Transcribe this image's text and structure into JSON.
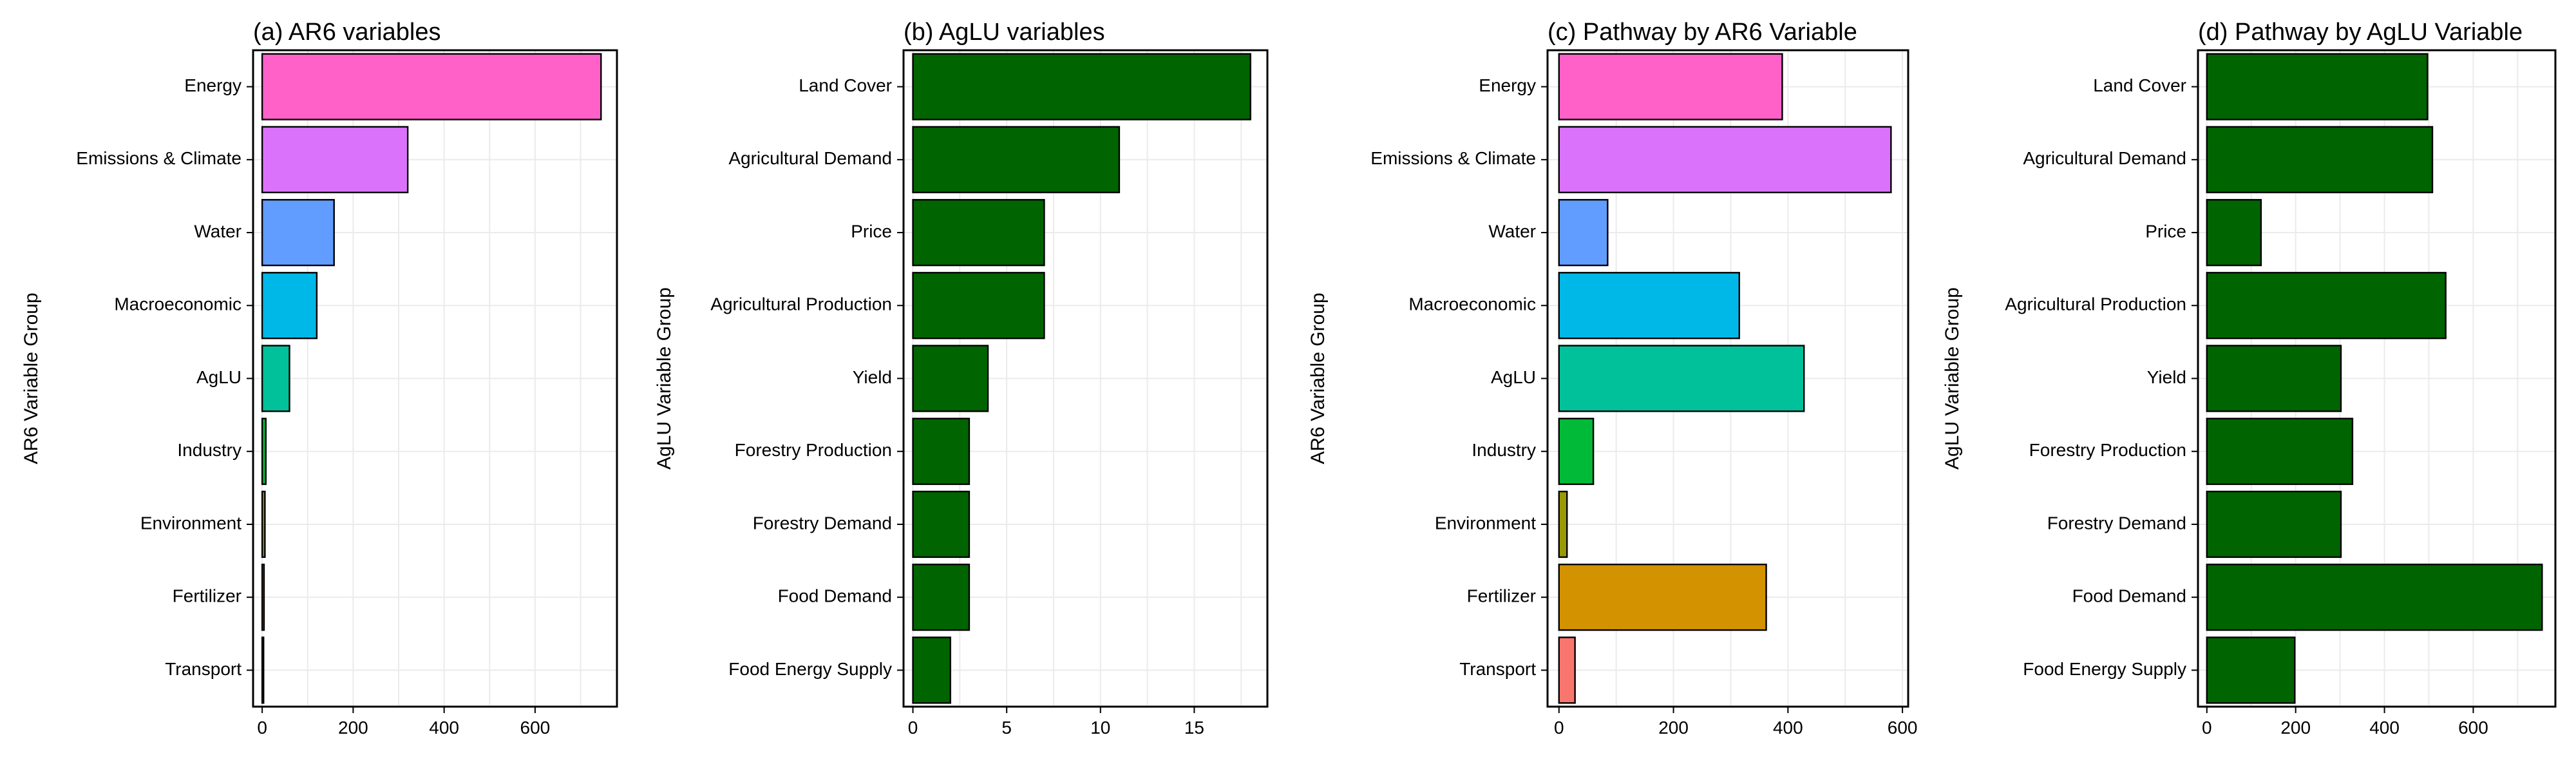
{
  "chart_data": [
    {
      "type": "bar",
      "orientation": "horizontal",
      "title": "(a) AR6 variables",
      "ylabel": "AR6 Variable Group",
      "xlabel": "",
      "categories": [
        "Energy",
        "Emissions & Climate",
        "Water",
        "Macroeconomic",
        "AgLU",
        "Industry",
        "Environment",
        "Fertilizer",
        "Transport"
      ],
      "values": [
        745,
        320,
        158,
        120,
        60,
        8,
        6,
        4,
        3
      ],
      "colors": [
        "#ff61c9",
        "#db72fb",
        "#619cff",
        "#00b8e7",
        "#00c19a",
        "#00ba38",
        "#999900",
        "#d39200",
        "#f8766d"
      ],
      "xlim": [
        -20,
        780
      ],
      "xticks": [
        0,
        200,
        400,
        600
      ],
      "grid": true
    },
    {
      "type": "bar",
      "orientation": "horizontal",
      "title": "(b) AgLU variables",
      "ylabel": "AgLU Variable Group",
      "xlabel": "",
      "categories": [
        "Land Cover",
        "Agricultural Demand",
        "Price",
        "Agricultural Production",
        "Yield",
        "Forestry Production",
        "Forestry Demand",
        "Food Demand",
        "Food Energy Supply"
      ],
      "values": [
        18,
        11,
        7,
        7,
        4,
        3,
        3,
        3,
        2
      ],
      "colors": [
        "#006400",
        "#006400",
        "#006400",
        "#006400",
        "#006400",
        "#006400",
        "#006400",
        "#006400",
        "#006400"
      ],
      "xlim": [
        -0.5,
        18.9
      ],
      "xticks": [
        0,
        5,
        10,
        15
      ],
      "grid": true
    },
    {
      "type": "bar",
      "orientation": "horizontal",
      "title": "(c) Pathway by AR6 Variable",
      "ylabel": "AR6 Variable Group",
      "xlabel": "",
      "categories": [
        "Energy",
        "Emissions & Climate",
        "Water",
        "Macroeconomic",
        "AgLU",
        "Industry",
        "Environment",
        "Fertilizer",
        "Transport"
      ],
      "values": [
        390,
        580,
        85,
        315,
        428,
        60,
        14,
        362,
        28
      ],
      "colors": [
        "#ff61c9",
        "#db72fb",
        "#619cff",
        "#00b8e7",
        "#00c19a",
        "#00ba38",
        "#999900",
        "#d39200",
        "#f8766d"
      ],
      "xlim": [
        -20,
        610
      ],
      "xticks": [
        0,
        200,
        400,
        600
      ],
      "grid": true
    },
    {
      "type": "bar",
      "orientation": "horizontal",
      "title": "(d) Pathway by AgLU Variable",
      "ylabel": "AgLU Variable Group",
      "xlabel": "",
      "categories": [
        "Land Cover",
        "Agricultural Demand",
        "Price",
        "Agricultural Production",
        "Yield",
        "Forestry Production",
        "Forestry Demand",
        "Food Demand",
        "Food Energy Supply"
      ],
      "values": [
        497,
        508,
        122,
        538,
        302,
        328,
        302,
        755,
        198
      ],
      "colors": [
        "#006400",
        "#006400",
        "#006400",
        "#006400",
        "#006400",
        "#006400",
        "#006400",
        "#006400",
        "#006400"
      ],
      "xlim": [
        -20,
        785
      ],
      "xticks": [
        0,
        200,
        400,
        600
      ],
      "grid": true
    }
  ]
}
